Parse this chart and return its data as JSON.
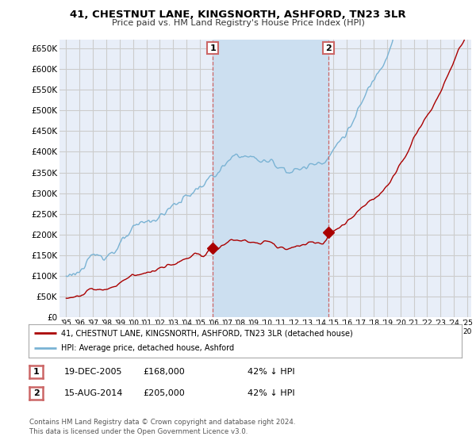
{
  "title": "41, CHESTNUT LANE, KINGSNORTH, ASHFORD, TN23 3LR",
  "subtitle": "Price paid vs. HM Land Registry's House Price Index (HPI)",
  "ylim": [
    0,
    670000
  ],
  "yticks": [
    0,
    50000,
    100000,
    150000,
    200000,
    250000,
    300000,
    350000,
    400000,
    450000,
    500000,
    550000,
    600000,
    650000
  ],
  "x_start_year": 1995,
  "x_end_year": 2025,
  "hpi_color": "#7ab3d4",
  "hpi_fill_color": "#c8dff0",
  "price_color": "#aa0000",
  "marker_color": "#aa0000",
  "sale1_date": 2005.96,
  "sale1_price": 168000,
  "sale2_date": 2014.62,
  "sale2_price": 205000,
  "bg_color": "#ffffff",
  "plot_bg_color": "#e8eef8",
  "grid_color": "#cccccc",
  "legend_label_red": "41, CHESTNUT LANE, KINGSNORTH, ASHFORD, TN23 3LR (detached house)",
  "legend_label_blue": "HPI: Average price, detached house, Ashford",
  "table_row1": [
    "1",
    "19-DEC-2005",
    "£168,000",
    "42% ↓ HPI"
  ],
  "table_row2": [
    "2",
    "15-AUG-2014",
    "£205,000",
    "42% ↓ HPI"
  ],
  "footer": "Contains HM Land Registry data © Crown copyright and database right 2024.\nThis data is licensed under the Open Government Licence v3.0.",
  "vline_color": "#cc6666",
  "shade_color": "#ccdff0"
}
